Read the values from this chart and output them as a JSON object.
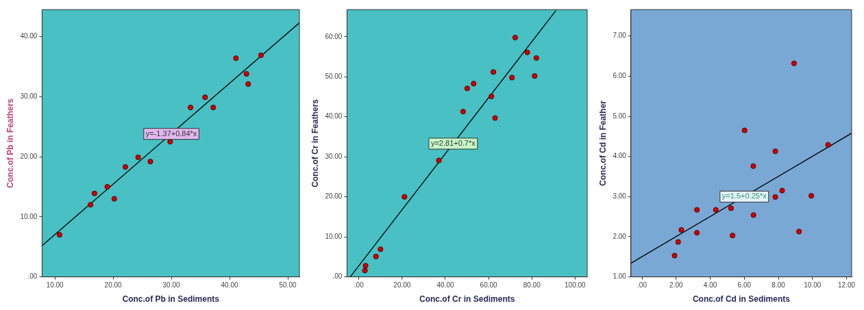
{
  "chart_data": [
    {
      "type": "scatter",
      "xlabel": "Conc.of Pb in Sediments",
      "ylabel": "Conc.of Pb in Feathers",
      "xlim": [
        7.8,
        52
      ],
      "ylim": [
        0,
        44.5
      ],
      "xticks": [
        {
          "value": 10,
          "label": "10.00"
        },
        {
          "value": 20,
          "label": "20.00"
        },
        {
          "value": 30,
          "label": "30.00"
        },
        {
          "value": 40,
          "label": "40.00"
        },
        {
          "value": 50,
          "label": "50.00"
        }
      ],
      "yticks": [
        {
          "value": 0,
          "label": ".00"
        },
        {
          "value": 10,
          "label": "10.00"
        },
        {
          "value": 20,
          "label": "20.00"
        },
        {
          "value": 30,
          "label": "30.00"
        },
        {
          "value": 40,
          "label": "40.00"
        }
      ],
      "grid": false,
      "legend": false,
      "marker": "circle",
      "series": [
        {
          "color": "#cc0000",
          "x": [
            10.8,
            16.1,
            16.8,
            19.0,
            20.2,
            22.1,
            24.3,
            26.4,
            29.8,
            33.3,
            35.8,
            37.2,
            41.1,
            42.9,
            43.2,
            45.4
          ],
          "values": [
            7.0,
            12.0,
            13.9,
            15.0,
            13.0,
            18.3,
            19.9,
            19.2,
            22.5,
            28.2,
            29.9,
            28.2,
            36.4,
            33.8,
            32.1,
            36.9
          ]
        },
        {
          "type": "line",
          "color": "#000000",
          "marker": "none",
          "line_style": "solid",
          "x": [
            7.8,
            52
          ],
          "values": [
            5.2,
            42.3
          ]
        }
      ],
      "annotations": [
        {
          "text": "y=-1.37+0.84*x",
          "x": 30,
          "y": 23.8
        }
      ]
    },
    {
      "type": "scatter",
      "xlabel": "Conc.of Cr in Sediments",
      "ylabel": "Conc.of Cr in Feathers",
      "xlim": [
        -5.5,
        105.6
      ],
      "ylim": [
        0,
        66.8
      ],
      "xticks": [
        {
          "value": 0,
          "label": ".00"
        },
        {
          "value": 20,
          "label": "20.00"
        },
        {
          "value": 40,
          "label": "40.00"
        },
        {
          "value": 60,
          "label": "60.00"
        },
        {
          "value": 80,
          "label": "80.00"
        },
        {
          "value": 100,
          "label": "100.00"
        }
      ],
      "yticks": [
        {
          "value": 0,
          "label": ".00"
        },
        {
          "value": 10,
          "label": "10.00"
        },
        {
          "value": 20,
          "label": "20.00"
        },
        {
          "value": 30,
          "label": "30.00"
        },
        {
          "value": 40,
          "label": "40.00"
        },
        {
          "value": 50,
          "label": "50.00"
        },
        {
          "value": 60,
          "label": "60.00"
        }
      ],
      "grid": false,
      "legend": false,
      "marker": "circle",
      "series": [
        {
          "color": "#cc0000",
          "x": [
            2.8,
            3.1,
            7.9,
            10.0,
            21.1,
            37.0,
            48.2,
            50.1,
            53.1,
            61.3,
            62.2,
            63.0,
            70.8,
            72.3,
            77.9,
            81.3,
            82.1
          ],
          "values": [
            1.6,
            2.8,
            5.1,
            6.9,
            20.0,
            29.1,
            41.3,
            47.1,
            48.3,
            45.1,
            51.2,
            39.7,
            49.8,
            59.8,
            56.1,
            50.2,
            54.7
          ]
        },
        {
          "type": "line",
          "color": "#000000",
          "marker": "none",
          "line_style": "solid",
          "x": [
            -4,
            91.2
          ],
          "values": [
            0,
            66.6
          ]
        }
      ],
      "annotations": [
        {
          "text": "y=2.81+0.7*x",
          "x": 43.6,
          "y": 33.3
        }
      ]
    },
    {
      "type": "scatter",
      "xlabel": "Conc.of Cd in Sediments",
      "ylabel": "Conc.of Cd in Feather",
      "xlim": [
        -0.65,
        12.3
      ],
      "ylim": [
        1,
        7.66
      ],
      "xticks": [
        {
          "value": 0,
          "label": ".00"
        },
        {
          "value": 2,
          "label": "2.00"
        },
        {
          "value": 4,
          "label": "4.00"
        },
        {
          "value": 6,
          "label": "6.00"
        },
        {
          "value": 8,
          "label": "8.00"
        },
        {
          "value": 10,
          "label": "10.00"
        },
        {
          "value": 12,
          "label": "12.00"
        }
      ],
      "yticks": [
        {
          "value": 1,
          "label": "1.00"
        },
        {
          "value": 2,
          "label": "2.00"
        },
        {
          "value": 3,
          "label": "3.00"
        },
        {
          "value": 4,
          "label": "4.00"
        },
        {
          "value": 5,
          "label": "5.00"
        },
        {
          "value": 6,
          "label": "6.00"
        },
        {
          "value": 7,
          "label": "7.00"
        }
      ],
      "grid": false,
      "legend": false,
      "marker": "circle",
      "series": [
        {
          "color": "#cc0000",
          "x": [
            1.91,
            2.12,
            2.31,
            3.22,
            3.22,
            4.33,
            5.22,
            5.31,
            6.02,
            6.53,
            6.54,
            7.82,
            7.82,
            8.22,
            8.92,
            9.21,
            9.93,
            10.92
          ],
          "values": [
            1.53,
            1.87,
            2.17,
            2.67,
            2.1,
            2.67,
            2.71,
            2.03,
            4.65,
            3.76,
            2.54,
            4.13,
            2.99,
            3.15,
            6.32,
            2.13,
            3.02,
            4.29
          ]
        },
        {
          "type": "line",
          "color": "#000000",
          "marker": "none",
          "line_style": "solid",
          "x": [
            -0.65,
            12.3
          ],
          "values": [
            1.34,
            4.58
          ]
        }
      ],
      "annotations": [
        {
          "text": "y=1.5+0.25*x",
          "x": 6.0,
          "y": 3.0
        }
      ]
    }
  ]
}
